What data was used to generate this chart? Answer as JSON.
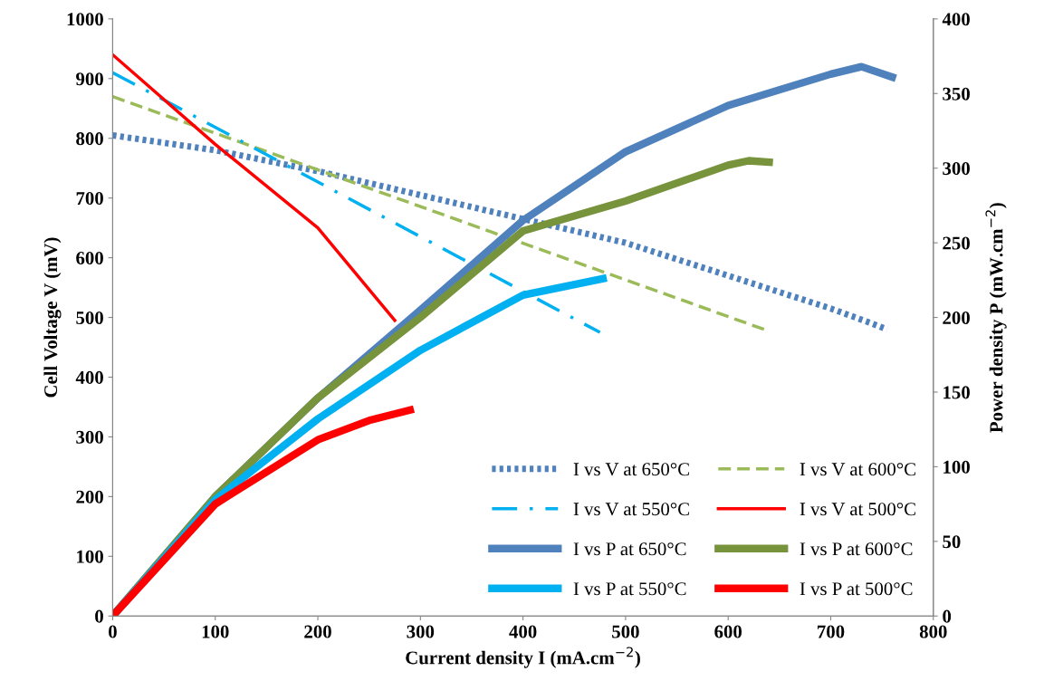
{
  "chart_data": {
    "type": "line",
    "xlabel": "Current density I (mA.cm$^{−2}$)",
    "ylabel": "Cell Voltage V (mV)",
    "y2label": "Power density P (mW.cm$^{−2}$)",
    "xlim": [
      0,
      800
    ],
    "xticks": [
      0,
      100,
      200,
      300,
      400,
      500,
      600,
      700,
      800
    ],
    "ylim": [
      0,
      1000
    ],
    "yticks": [
      0,
      100,
      200,
      300,
      400,
      500,
      600,
      700,
      800,
      900,
      1000
    ],
    "y2lim": [
      0,
      400
    ],
    "y2ticks": [
      0,
      50,
      100,
      150,
      200,
      250,
      300,
      350,
      400
    ],
    "grid": false,
    "legend": "bottom right",
    "marker": "none",
    "series": [
      {
        "name": "I vs V at 650°C",
        "color": "#4f81bd",
        "line_style": "dotted",
        "x": [
          0,
          100,
          200,
          300,
          400,
          500,
          600,
          700,
          740,
          755
        ],
        "values": [
          805,
          780,
          745,
          705,
          665,
          625,
          570,
          515,
          490,
          480
        ]
      },
      {
        "name": "I vs V at 600°C",
        "color": "#9bbb59",
        "line_style": "dashed",
        "x": [
          0,
          635
        ],
        "values": [
          870,
          480
        ]
      },
      {
        "name": "I vs V at 550°C",
        "color": "#00b0f0",
        "line_style": "dashdot",
        "x": [
          0,
          475
        ],
        "values": [
          910,
          475
        ]
      },
      {
        "name": "I vs V at 500°C",
        "color": "#ff0000",
        "line_style": "solid",
        "x": [
          0,
          100,
          200,
          275
        ],
        "values": [
          940,
          790,
          650,
          495
        ]
      },
      {
        "name": "I vs P at 650°C",
        "color": "#4f81bd",
        "line_style": "solid",
        "axis": "y2",
        "x": [
          0,
          100,
          200,
          300,
          400,
          500,
          600,
          700,
          730,
          760
        ],
        "values": [
          0,
          80,
          146,
          205,
          265,
          311,
          342,
          363,
          368,
          361
        ]
      },
      {
        "name": "I vs P at 600°C",
        "color": "#77933c",
        "line_style": "solid",
        "axis": "y2",
        "x": [
          0,
          100,
          200,
          300,
          400,
          500,
          600,
          620,
          640
        ],
        "values": [
          0,
          80,
          146,
          200,
          258,
          278,
          302,
          305,
          304
        ]
      },
      {
        "name": "I vs P at 550°C",
        "color": "#00b0f0",
        "line_style": "solid",
        "axis": "y2",
        "x": [
          0,
          100,
          200,
          300,
          400,
          478
        ],
        "values": [
          0,
          78,
          132,
          178,
          215,
          226
        ]
      },
      {
        "name": "I vs P at 500°C",
        "color": "#ff0000",
        "line_style": "solid",
        "axis": "y2",
        "x": [
          0,
          100,
          200,
          250,
          290
        ],
        "values": [
          0,
          75,
          118,
          131,
          138
        ]
      }
    ]
  }
}
